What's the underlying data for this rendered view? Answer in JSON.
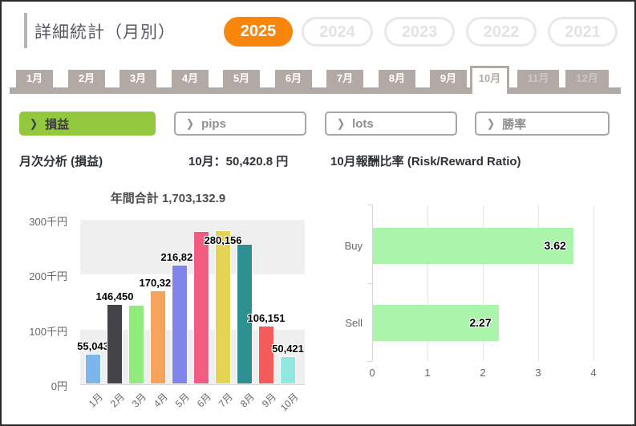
{
  "header": {
    "title": "詳細統計（月別）",
    "years": [
      {
        "label": "2025",
        "active": true
      },
      {
        "label": "2024",
        "active": false
      },
      {
        "label": "2023",
        "active": false
      },
      {
        "label": "2022",
        "active": false
      },
      {
        "label": "2021",
        "active": false
      }
    ]
  },
  "month_tabs": [
    {
      "label": "1月",
      "state": "normal"
    },
    {
      "label": "2月",
      "state": "normal"
    },
    {
      "label": "3月",
      "state": "normal"
    },
    {
      "label": "4月",
      "state": "normal"
    },
    {
      "label": "5月",
      "state": "normal"
    },
    {
      "label": "6月",
      "state": "normal"
    },
    {
      "label": "7月",
      "state": "normal"
    },
    {
      "label": "8月",
      "state": "normal"
    },
    {
      "label": "9月",
      "state": "normal"
    },
    {
      "label": "10月",
      "state": "active"
    },
    {
      "label": "11月",
      "state": "disabled"
    },
    {
      "label": "12月",
      "state": "disabled"
    }
  ],
  "filters": [
    {
      "label": "損益",
      "active": true
    },
    {
      "label": "pips",
      "active": false
    },
    {
      "label": "lots",
      "active": false
    },
    {
      "label": "勝率",
      "active": false
    }
  ],
  "section_titles": {
    "left": "月次分析 (損益)",
    "middle": "10月：50,420.8 円",
    "right": "10月報酬比率 (Risk/Reward Ratio)"
  },
  "chart_data": [
    {
      "type": "bar",
      "title": "年間合計 1,703,132.9",
      "categories": [
        "1月",
        "2月",
        "3月",
        "4月",
        "5月",
        "6月",
        "7月",
        "8月",
        "9月",
        "10月"
      ],
      "values": [
        55043,
        146450,
        144000,
        170326,
        216822,
        278764,
        280156,
        255000,
        106151,
        50421
      ],
      "data_labels": [
        "55,043",
        "146,450",
        null,
        "170,326",
        "216,822",
        null,
        "280,156",
        null,
        "106,151",
        "50,421"
      ],
      "hidden_label_indices": [
        2,
        5,
        7
      ],
      "bar_colors": [
        "#7cb5ec",
        "#434348",
        "#90ed7d",
        "#f7a35c",
        "#8085e9",
        "#f15c80",
        "#e4d354",
        "#2b908f",
        "#f45b5b",
        "#91e8e1"
      ],
      "ylim": [
        0,
        300000
      ],
      "ytick_labels_top_to_bottom": [
        "300千円",
        "200千円",
        "100千円",
        "0円"
      ],
      "band_color": "#efefef",
      "legend": false
    },
    {
      "type": "bar_horizontal",
      "categories": [
        "Buy",
        "Sell"
      ],
      "values": [
        3.62,
        2.27
      ],
      "data_labels": [
        "3.62",
        "2.27"
      ],
      "xlim": [
        0,
        4
      ],
      "xtick_labels": [
        "0",
        "1",
        "2",
        "3",
        "4"
      ],
      "bar_color": "#aaf4ac",
      "legend": false
    }
  ],
  "colors": {
    "accent_orange": "#f8860d",
    "accent_green": "#93c83e",
    "tab_taupe": "#b3a9a4",
    "section_text": "#2f3237",
    "chart_text_gray": "#666666"
  }
}
